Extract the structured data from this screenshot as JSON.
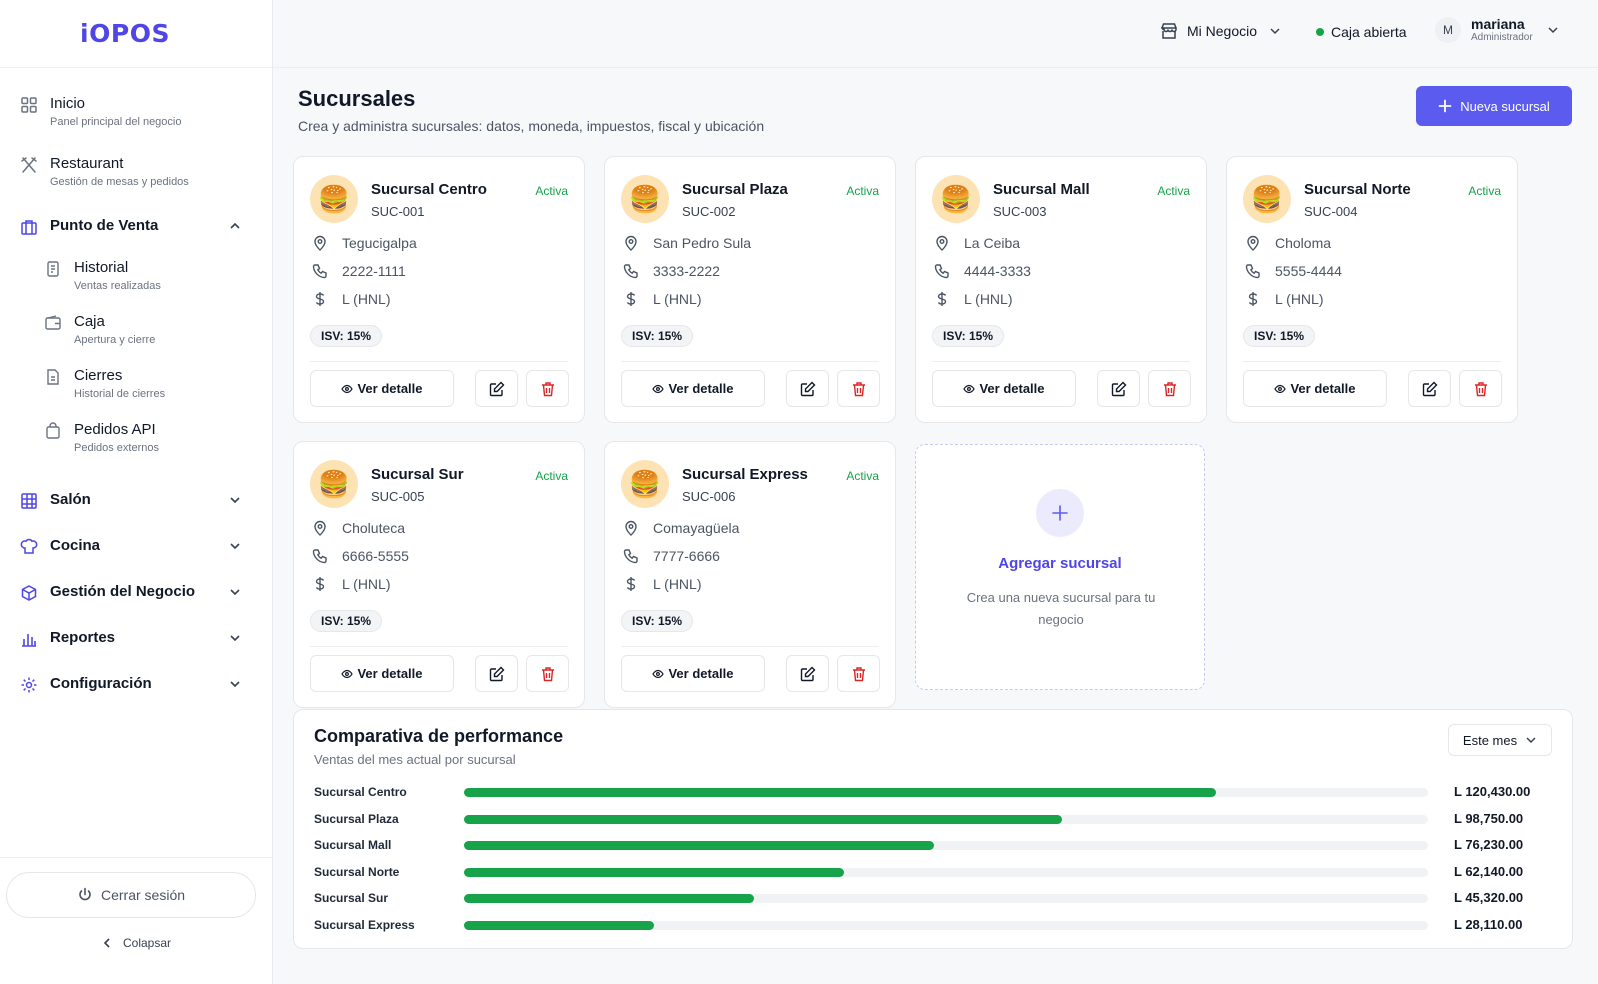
{
  "app": {
    "logo": "iOPOS"
  },
  "topbar": {
    "business": "Mi Negocio",
    "status": "Caja abierta",
    "user_initial": "M",
    "user_name": "mariana",
    "user_role": "Administrador"
  },
  "sidebar": {
    "items": [
      {
        "title": "Inicio",
        "sub": "Panel principal del negocio",
        "icon": "grid-icon"
      },
      {
        "title": "Restaurant",
        "sub": "Gestión de mesas y pedidos",
        "icon": "utensils-icon"
      },
      {
        "title": "Punto de Venta",
        "icon": "store-icon"
      }
    ],
    "subitems": [
      {
        "title": "Historial",
        "sub": "Ventas realizadas",
        "icon": "receipt-icon"
      },
      {
        "title": "Caja",
        "sub": "Apertura y cierre",
        "icon": "wallet-icon"
      },
      {
        "title": "Cierres",
        "sub": "Historial de cierres",
        "icon": "document-icon"
      },
      {
        "title": "Pedidos API",
        "sub": "Pedidos externos",
        "icon": "bag-icon"
      }
    ],
    "sections": [
      {
        "title": "Salón",
        "icon": "table-icon"
      },
      {
        "title": "Cocina",
        "icon": "chef-hat-icon"
      },
      {
        "title": "Gestión del Negocio",
        "icon": "box-icon"
      },
      {
        "title": "Reportes",
        "icon": "bar-chart-icon"
      },
      {
        "title": "Configuración",
        "icon": "gear-icon"
      }
    ],
    "logout": "Cerrar sesión",
    "collapse": "Colapsar"
  },
  "page": {
    "title": "Sucursales",
    "subtitle": "Crea y administra sucursales: datos, moneda, impuestos, fiscal y ubicación",
    "new_button": "Nueva sucursal"
  },
  "branches": [
    {
      "name": "Sucursal Centro",
      "code": "SUC-001",
      "status": "Activa",
      "city": "Tegucigalpa",
      "phone": "2222-1111",
      "currency": "L (HNL)",
      "isv": "ISV: 15%",
      "detail": "Ver detalle"
    },
    {
      "name": "Sucursal Plaza",
      "code": "SUC-002",
      "status": "Activa",
      "city": "San Pedro Sula",
      "phone": "3333-2222",
      "currency": "L (HNL)",
      "isv": "ISV: 15%",
      "detail": "Ver detalle"
    },
    {
      "name": "Sucursal Mall",
      "code": "SUC-003",
      "status": "Activa",
      "city": "La Ceiba",
      "phone": "4444-3333",
      "currency": "L (HNL)",
      "isv": "ISV: 15%",
      "detail": "Ver detalle"
    },
    {
      "name": "Sucursal Norte",
      "code": "SUC-004",
      "status": "Activa",
      "city": "Choloma",
      "phone": "5555-4444",
      "currency": "L (HNL)",
      "isv": "ISV: 15%",
      "detail": "Ver detalle"
    },
    {
      "name": "Sucursal Sur",
      "code": "SUC-005",
      "status": "Activa",
      "city": "Choluteca",
      "phone": "6666-5555",
      "currency": "L (HNL)",
      "isv": "ISV: 15%",
      "detail": "Ver detalle"
    },
    {
      "name": "Sucursal Express",
      "code": "SUC-006",
      "status": "Activa",
      "city": "Comayagüela",
      "phone": "7777-6666",
      "currency": "L (HNL)",
      "isv": "ISV: 15%",
      "detail": "Ver detalle"
    }
  ],
  "add_card": {
    "title": "Agregar sucursal",
    "desc": "Crea una nueva sucursal para tu negocio"
  },
  "performance": {
    "title": "Comparativa de performance",
    "subtitle": "Ventas del mes actual por sucursal",
    "period": "Este mes",
    "rows": [
      {
        "name": "Sucursal Centro",
        "value_label": "L  120,430.00",
        "fraction": 0.78
      },
      {
        "name": "Sucursal Plaza",
        "value_label": "L  98,750.00",
        "fraction": 0.62
      },
      {
        "name": "Sucursal Mall",
        "value_label": "L  76,230.00",
        "fraction": 0.488
      },
      {
        "name": "Sucursal Norte",
        "value_label": "L  62,140.00",
        "fraction": 0.394
      },
      {
        "name": "Sucursal Sur",
        "value_label": "L  45,320.00",
        "fraction": 0.301
      },
      {
        "name": "Sucursal Express",
        "value_label": "L  28,110.00",
        "fraction": 0.197
      }
    ]
  },
  "colors": {
    "accent": "#5b5bf0",
    "success": "#16a34a",
    "danger": "#dc2626"
  }
}
